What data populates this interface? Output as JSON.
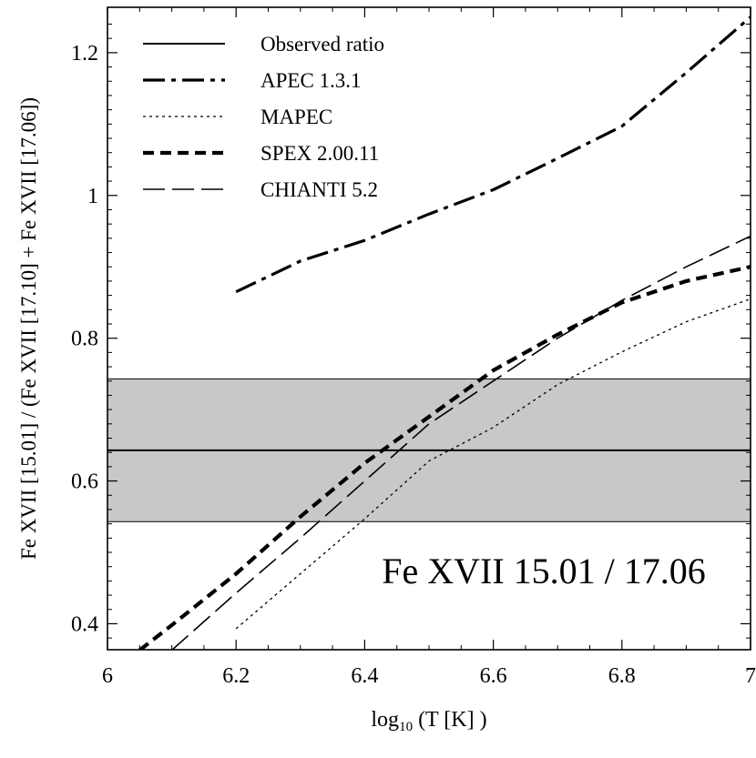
{
  "chart_data": {
    "type": "line",
    "title": "",
    "annotation": "Fe XVII 15.01 / 17.06",
    "xlabel_base": "log",
    "xlabel_sub": "10",
    "xlabel_rest": " (T [K] )",
    "ylabel": "Fe XVII [15.01] / (Fe XVII [17.10] + Fe XVII [17.06])",
    "xlim": [
      6.0,
      7.0
    ],
    "ylim": [
      0.3636,
      1.2636
    ],
    "x_ticks": [
      6,
      6.2,
      6.4,
      6.6,
      6.8,
      7
    ],
    "x_tick_labels": [
      "6",
      "6.2",
      "6.4",
      "6.6",
      "6.8",
      "7"
    ],
    "y_ticks": [
      0.4,
      0.6,
      0.8,
      1,
      1.2
    ],
    "y_tick_labels": [
      "0.4",
      "0.6",
      "0.8",
      "1",
      "1.2"
    ],
    "grid": false,
    "legend_position": "top-left",
    "observed_ratio": {
      "name": "Observed ratio",
      "value": 0.643,
      "band": [
        0.543,
        0.743
      ]
    },
    "series": [
      {
        "name": "APEC 1.3.1",
        "style": "dashdot-thick",
        "x": [
          6.2,
          6.3,
          6.4,
          6.5,
          6.6,
          6.7,
          6.8,
          6.9,
          7.0
        ],
        "y": [
          0.865,
          0.908,
          0.937,
          0.974,
          1.008,
          1.052,
          1.097,
          1.172,
          1.25
        ]
      },
      {
        "name": "MAPEC",
        "style": "dotted",
        "x": [
          6.2,
          6.3,
          6.4,
          6.5,
          6.6,
          6.7,
          6.8,
          6.9,
          7.0
        ],
        "y": [
          0.393,
          0.47,
          0.547,
          0.628,
          0.675,
          0.735,
          0.781,
          0.823,
          0.855
        ]
      },
      {
        "name": "SPEX 2.00.11",
        "style": "dashed-thick",
        "x": [
          6.05,
          6.1,
          6.2,
          6.3,
          6.4,
          6.5,
          6.6,
          6.7,
          6.8,
          6.9,
          7.0
        ],
        "y": [
          0.363,
          0.398,
          0.47,
          0.55,
          0.625,
          0.69,
          0.755,
          0.805,
          0.85,
          0.88,
          0.9
        ]
      },
      {
        "name": "CHIANTI 5.2",
        "style": "longdash",
        "x": [
          6.1,
          6.2,
          6.3,
          6.4,
          6.5,
          6.6,
          6.7,
          6.8,
          6.9,
          7.0
        ],
        "y": [
          0.363,
          0.443,
          0.52,
          0.6,
          0.68,
          0.74,
          0.8,
          0.853,
          0.9,
          0.943
        ]
      }
    ]
  }
}
